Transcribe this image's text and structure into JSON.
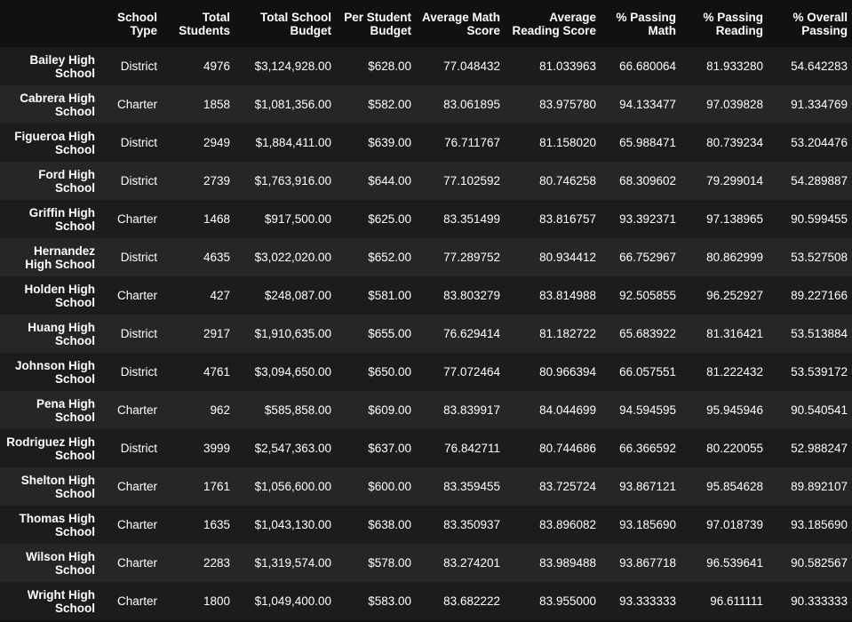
{
  "table": {
    "index_header": "",
    "columns": [
      "School Type",
      "Total Students",
      "Total School Budget",
      "Per Student Budget",
      "Average Math Score",
      "Average Reading Score",
      "% Passing Math",
      "% Passing Reading",
      "% Overall Passing"
    ],
    "rows": [
      {
        "school": "Bailey High School",
        "cells": [
          "District",
          "4976",
          "$3,124,928.00",
          "$628.00",
          "77.048432",
          "81.033963",
          "66.680064",
          "81.933280",
          "54.642283"
        ]
      },
      {
        "school": "Cabrera High School",
        "cells": [
          "Charter",
          "1858",
          "$1,081,356.00",
          "$582.00",
          "83.061895",
          "83.975780",
          "94.133477",
          "97.039828",
          "91.334769"
        ]
      },
      {
        "school": "Figueroa High School",
        "cells": [
          "District",
          "2949",
          "$1,884,411.00",
          "$639.00",
          "76.711767",
          "81.158020",
          "65.988471",
          "80.739234",
          "53.204476"
        ]
      },
      {
        "school": "Ford High School",
        "cells": [
          "District",
          "2739",
          "$1,763,916.00",
          "$644.00",
          "77.102592",
          "80.746258",
          "68.309602",
          "79.299014",
          "54.289887"
        ]
      },
      {
        "school": "Griffin High School",
        "cells": [
          "Charter",
          "1468",
          "$917,500.00",
          "$625.00",
          "83.351499",
          "83.816757",
          "93.392371",
          "97.138965",
          "90.599455"
        ]
      },
      {
        "school": "Hernandez High School",
        "cells": [
          "District",
          "4635",
          "$3,022,020.00",
          "$652.00",
          "77.289752",
          "80.934412",
          "66.752967",
          "80.862999",
          "53.527508"
        ]
      },
      {
        "school": "Holden High School",
        "cells": [
          "Charter",
          "427",
          "$248,087.00",
          "$581.00",
          "83.803279",
          "83.814988",
          "92.505855",
          "96.252927",
          "89.227166"
        ]
      },
      {
        "school": "Huang High School",
        "cells": [
          "District",
          "2917",
          "$1,910,635.00",
          "$655.00",
          "76.629414",
          "81.182722",
          "65.683922",
          "81.316421",
          "53.513884"
        ]
      },
      {
        "school": "Johnson High School",
        "cells": [
          "District",
          "4761",
          "$3,094,650.00",
          "$650.00",
          "77.072464",
          "80.966394",
          "66.057551",
          "81.222432",
          "53.539172"
        ]
      },
      {
        "school": "Pena High School",
        "cells": [
          "Charter",
          "962",
          "$585,858.00",
          "$609.00",
          "83.839917",
          "84.044699",
          "94.594595",
          "95.945946",
          "90.540541"
        ]
      },
      {
        "school": "Rodriguez High School",
        "cells": [
          "District",
          "3999",
          "$2,547,363.00",
          "$637.00",
          "76.842711",
          "80.744686",
          "66.366592",
          "80.220055",
          "52.988247"
        ]
      },
      {
        "school": "Shelton High School",
        "cells": [
          "Charter",
          "1761",
          "$1,056,600.00",
          "$600.00",
          "83.359455",
          "83.725724",
          "93.867121",
          "95.854628",
          "89.892107"
        ]
      },
      {
        "school": "Thomas High School",
        "cells": [
          "Charter",
          "1635",
          "$1,043,130.00",
          "$638.00",
          "83.350937",
          "83.896082",
          "93.185690",
          "97.018739",
          "93.185690"
        ]
      },
      {
        "school": "Wilson High School",
        "cells": [
          "Charter",
          "2283",
          "$1,319,574.00",
          "$578.00",
          "83.274201",
          "83.989488",
          "93.867718",
          "96.539641",
          "90.582567"
        ]
      },
      {
        "school": "Wright High School",
        "cells": [
          "Charter",
          "1800",
          "$1,049,400.00",
          "$583.00",
          "83.682222",
          "83.955000",
          "93.333333",
          "96.611111",
          "90.333333"
        ]
      }
    ]
  },
  "colors": {
    "background": "#111111",
    "row_odd": "#1c1c1c",
    "row_even": "#262626",
    "text": "#ffffff"
  }
}
